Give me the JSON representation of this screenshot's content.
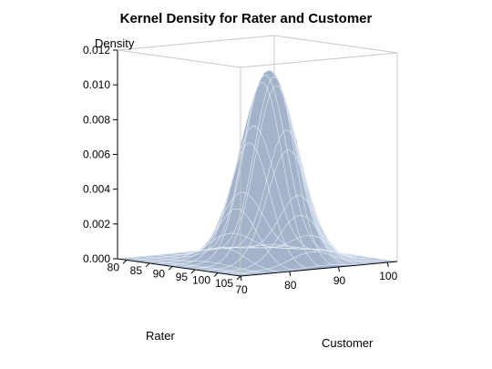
{
  "chart_data": {
    "type": "surface",
    "title": "Kernel Density for Rater and Customer",
    "axes": {
      "x": {
        "label": "Rater",
        "ticks": [
          80,
          85,
          90,
          95,
          100,
          105
        ],
        "range": [
          78,
          105
        ]
      },
      "y": {
        "label": "Customer",
        "ticks": [
          70,
          80,
          90,
          100
        ],
        "range": [
          70,
          102
        ]
      },
      "z": {
        "label": "Density",
        "ticks": [
          "0.000",
          "0.002",
          "0.004",
          "0.006",
          "0.008",
          "0.010",
          "0.012"
        ],
        "range": [
          0,
          0.012
        ]
      }
    },
    "surface": {
      "peaks": [
        {
          "rater": 93.5,
          "customer": 86.5,
          "density": 0.0109
        },
        {
          "rater": 91.5,
          "customer": 88.5,
          "density": 0.0109
        }
      ],
      "approx_max_density": 0.0109,
      "colors": {
        "surface_fill": "#aebfd6",
        "surface_dark": "#7f96b4",
        "mesh_lines": "#e8eef6",
        "box_lines": "#c8c8c8"
      }
    }
  }
}
